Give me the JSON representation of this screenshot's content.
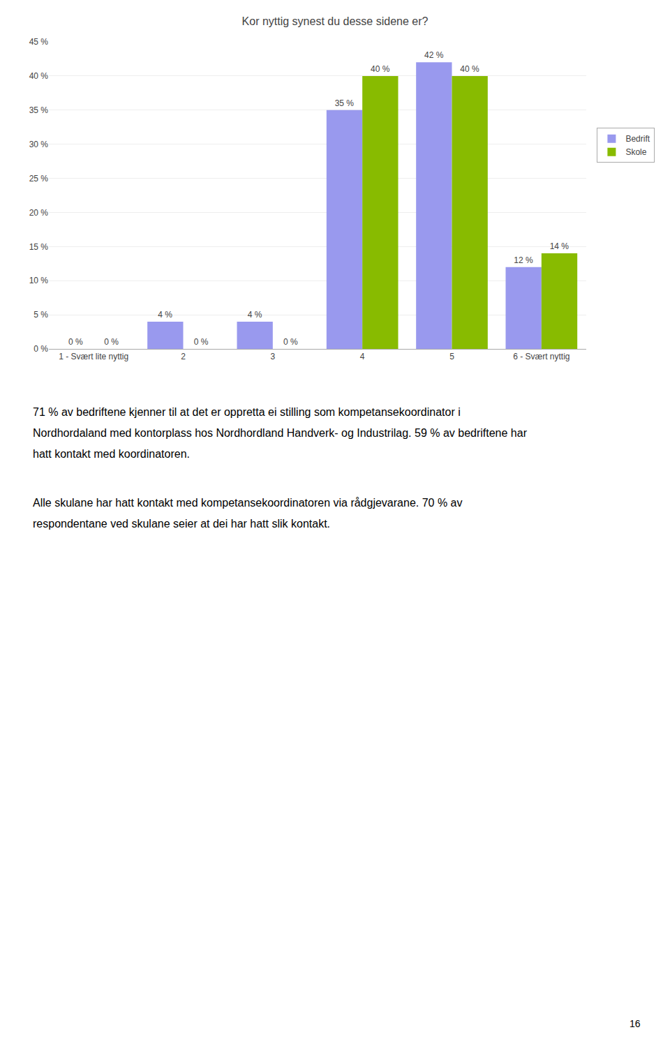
{
  "chart_data": {
    "type": "bar",
    "title": "Kor nyttig synest du desse sidene er?",
    "categories": [
      "1 - Svært lite nyttig",
      "2",
      "3",
      "4",
      "5",
      "6 - Svært nyttig"
    ],
    "series": [
      {
        "name": "Bedrift",
        "color": "#9999ee",
        "values": [
          0,
          4,
          4,
          35,
          42,
          12
        ],
        "value_labels": [
          "0 %",
          "4 %",
          "4 %",
          "35 %",
          "42 %",
          "12 %"
        ]
      },
      {
        "name": "Skole",
        "color": "#88bb00",
        "values": [
          0,
          0,
          0,
          40,
          40,
          14
        ],
        "value_labels": [
          "0 %",
          "0 %",
          "0 %",
          "40 %",
          "40 %",
          "14 %"
        ]
      }
    ],
    "ylim": [
      0,
      45
    ],
    "yticks": [
      {
        "value": 0,
        "label": "0 %"
      },
      {
        "value": 5,
        "label": "5 %"
      },
      {
        "value": 10,
        "label": "10 %"
      },
      {
        "value": 15,
        "label": "15 %"
      },
      {
        "value": 20,
        "label": "20 %"
      },
      {
        "value": 25,
        "label": "25 %"
      },
      {
        "value": 30,
        "label": "30 %"
      },
      {
        "value": 35,
        "label": "35 %"
      },
      {
        "value": 40,
        "label": "40 %"
      },
      {
        "value": 45,
        "label": "45 %"
      }
    ],
    "grid": true,
    "legend": "right",
    "data_labels": true,
    "annotations": [
      [
        "71 % av bedriftene kjenner til at det er oppretta ei stilling som kompetansekoordinator i",
        "Nordhordaland med kontorplass hos Nordhordland Handverk- og Industrilag. 59 % av bedriftene har",
        "hatt kontakt med koordinatoren."
      ],
      [
        "Alle skulane har hatt kontakt med kompetansekoordinatoren via rådgjevarane. 70 % av",
        "respondentane ved skulane seier at dei har hatt slik kontakt."
      ]
    ],
    "page_number": "16"
  }
}
